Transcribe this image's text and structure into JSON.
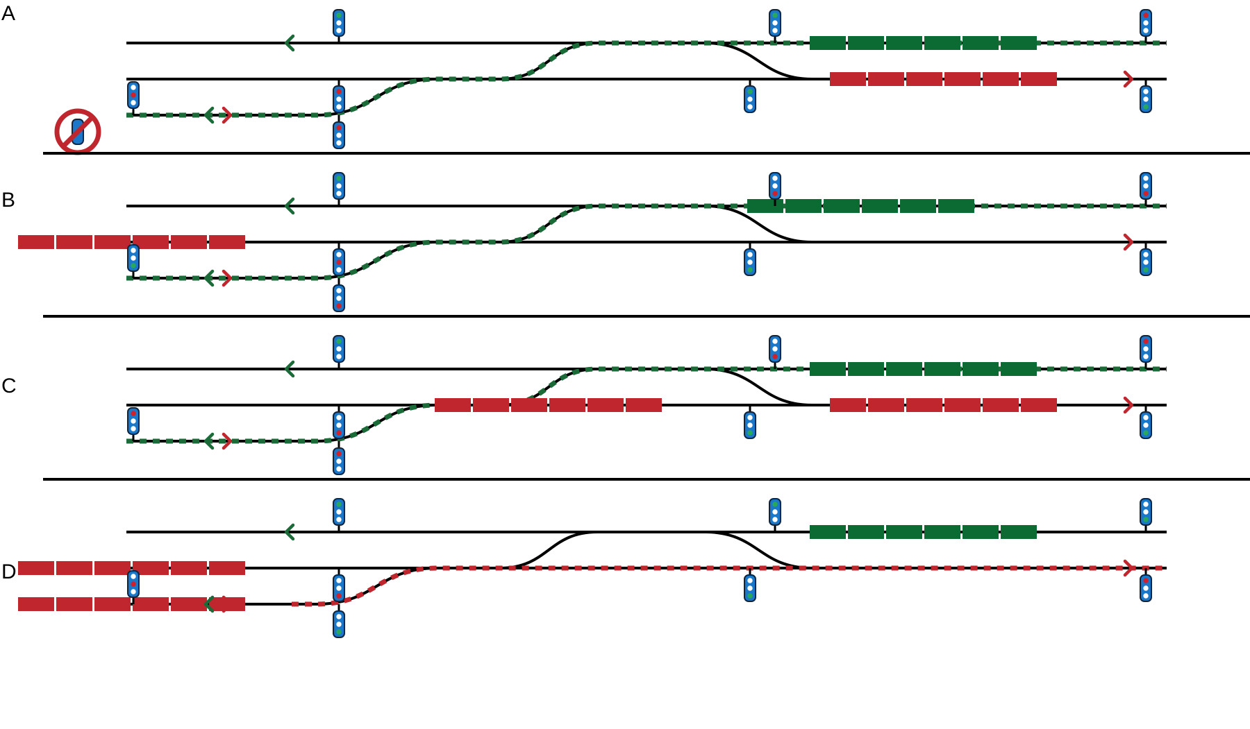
{
  "colors": {
    "track": "#000000",
    "route_green": "#1a6b38",
    "train_green": "#0b6b33",
    "train_red": "#c0262d",
    "signal_body": "#1b78c9",
    "signal_border": "#0d2540",
    "signal_lamp_off": "#ffffff",
    "lamp_green": "#27a85a",
    "lamp_red": "#d0202a",
    "prohibition": "#c0262d",
    "background": "#ffffff"
  },
  "icons": {
    "direction": "chevron-arrow",
    "signal": "three-lamp-signal",
    "prohibition": "no-signal-icon"
  },
  "panels": [
    {
      "label": "A",
      "signals": [
        {
          "lamp": "green",
          "pos": "top"
        },
        {
          "lamp": "green",
          "pos": "top"
        },
        {
          "lamp": "red",
          "pos": "top"
        },
        {
          "lamp": "green",
          "pos": "top"
        },
        {
          "lamp": "red",
          "pos": "middle"
        },
        {
          "lamp": "red",
          "pos": "top"
        },
        {
          "lamp": "green",
          "pos": "bottom"
        },
        {
          "lamp": "red",
          "pos": "top"
        }
      ]
    },
    {
      "label": "B",
      "signals": [
        {
          "lamp": "green",
          "pos": "top"
        },
        {
          "lamp": "red",
          "pos": "bottom"
        },
        {
          "lamp": "red",
          "pos": "middle"
        },
        {
          "lamp": "green",
          "pos": "bottom"
        },
        {
          "lamp": "green",
          "pos": "bottom"
        },
        {
          "lamp": "red",
          "pos": "bottom"
        },
        {
          "lamp": "green",
          "pos": "bottom"
        },
        {
          "lamp": "red",
          "pos": "bottom"
        }
      ]
    },
    {
      "label": "C",
      "signals": [
        {
          "lamp": "green",
          "pos": "top"
        },
        {
          "lamp": "red",
          "pos": "bottom"
        },
        {
          "lamp": "red",
          "pos": "bottom"
        },
        {
          "lamp": "green",
          "pos": "bottom"
        },
        {
          "lamp": "red",
          "pos": "top"
        },
        {
          "lamp": "red",
          "pos": "top"
        },
        {
          "lamp": "green",
          "pos": "bottom"
        },
        {
          "lamp": "red",
          "pos": "top"
        }
      ]
    },
    {
      "label": "D",
      "signals": [
        {
          "lamp": "green",
          "pos": "top"
        },
        {
          "lamp": "green",
          "pos": "top"
        },
        {
          "lamp": "red",
          "pos": "bottom"
        },
        {
          "lamp": "green",
          "pos": "bottom"
        },
        {
          "lamp": "red",
          "pos": "middle"
        },
        {
          "lamp": "green",
          "pos": "bottom"
        },
        {
          "lamp": "red",
          "pos": "top"
        },
        {
          "lamp": "green",
          "pos": "bottom"
        }
      ]
    }
  ]
}
